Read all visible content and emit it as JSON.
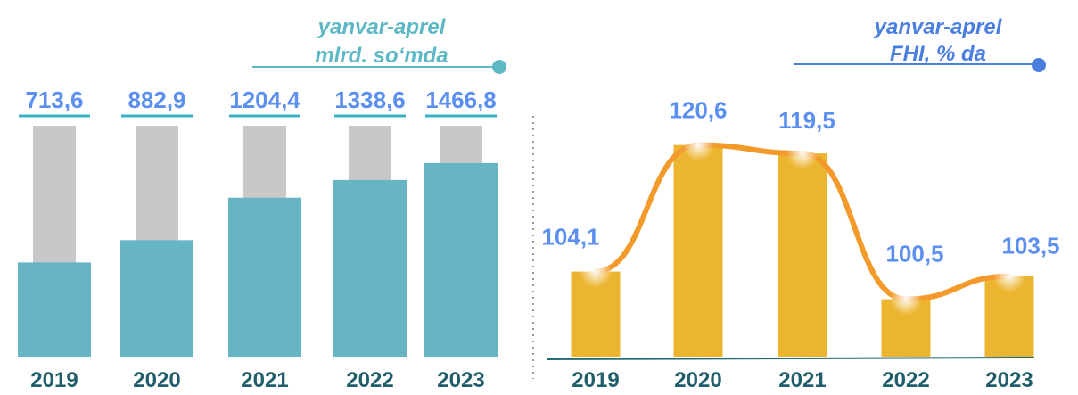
{
  "chart_data": [
    {
      "type": "bar",
      "title": "yanvar-aprel",
      "subtitle": "mlrd. so‘mda",
      "categories": [
        "2019",
        "2020",
        "2021",
        "2022",
        "2023"
      ],
      "values": [
        713.6,
        882.9,
        1204.4,
        1338.6,
        1466.8
      ],
      "value_labels": [
        "713,6",
        "882,9",
        "1204,4",
        "1338,6",
        "1466,8"
      ],
      "color": "#67b5c4",
      "background_color": "#c8c8c8",
      "ylim": [
        0,
        1750
      ]
    },
    {
      "type": "combo",
      "title": "yanvar-aprel",
      "subtitle": "FHI, % da",
      "categories": [
        "2019",
        "2020",
        "2021",
        "2022",
        "2023"
      ],
      "values": [
        104.1,
        120.6,
        119.5,
        100.5,
        103.5
      ],
      "value_labels": [
        "104,1",
        "120,6",
        "119,5",
        "100,5",
        "103,5"
      ],
      "color": "#ecb52f",
      "line_color": "#f39a2a",
      "ylim": [
        93,
        123
      ]
    }
  ]
}
